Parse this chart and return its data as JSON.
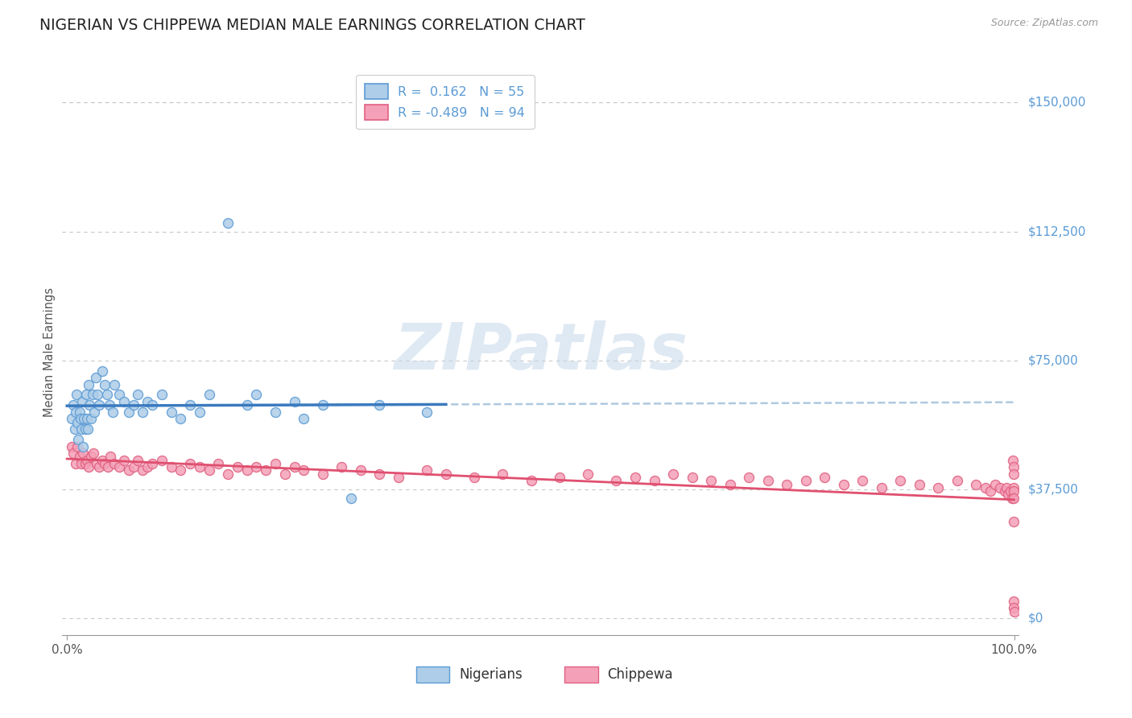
{
  "title": "NIGERIAN VS CHIPPEWA MEDIAN MALE EARNINGS CORRELATION CHART",
  "source_text": "Source: ZipAtlas.com",
  "ylabel": "Median Male Earnings",
  "watermark": "ZIPatlas",
  "bg_color": "#ffffff",
  "plot_bg_color": "#ffffff",
  "grid_color": "#c8c8c8",
  "title_color": "#222222",
  "title_fontsize": 13.5,
  "right_label_color": "#5b9bd5",
  "ytick_labels": [
    "$0",
    "$37,500",
    "$75,000",
    "$112,500",
    "$150,000"
  ],
  "ytick_values": [
    0,
    37500,
    75000,
    112500,
    150000
  ],
  "ylim": [
    -5000,
    160000
  ],
  "xlim": [
    -0.005,
    1.005
  ],
  "xtick_labels": [
    "0.0%",
    "100.0%"
  ],
  "xtick_values": [
    0.0,
    1.0
  ],
  "nigerians": {
    "R": 0.162,
    "N": 55,
    "color": "#aecde8",
    "border_color": "#5b9bd5",
    "trend_color": "#3a7abf",
    "trend_dashed_color": "#9abcd8",
    "label": "Nigerians",
    "x": [
      0.005,
      0.007,
      0.008,
      0.009,
      0.01,
      0.011,
      0.012,
      0.013,
      0.014,
      0.015,
      0.016,
      0.017,
      0.018,
      0.019,
      0.02,
      0.021,
      0.022,
      0.023,
      0.024,
      0.025,
      0.027,
      0.029,
      0.03,
      0.032,
      0.034,
      0.037,
      0.04,
      0.042,
      0.045,
      0.048,
      0.05,
      0.055,
      0.06,
      0.065,
      0.07,
      0.075,
      0.08,
      0.085,
      0.09,
      0.1,
      0.11,
      0.12,
      0.13,
      0.14,
      0.15,
      0.17,
      0.19,
      0.2,
      0.22,
      0.24,
      0.25,
      0.27,
      0.3,
      0.33,
      0.38
    ],
    "y": [
      58000,
      62000,
      55000,
      60000,
      65000,
      57000,
      52000,
      60000,
      58000,
      55000,
      63000,
      50000,
      58000,
      55000,
      65000,
      58000,
      55000,
      68000,
      62000,
      58000,
      65000,
      60000,
      70000,
      65000,
      62000,
      72000,
      68000,
      65000,
      62000,
      60000,
      68000,
      65000,
      63000,
      60000,
      62000,
      65000,
      60000,
      63000,
      62000,
      65000,
      60000,
      58000,
      62000,
      60000,
      65000,
      115000,
      62000,
      65000,
      60000,
      63000,
      58000,
      62000,
      35000,
      62000,
      60000
    ]
  },
  "chippewa": {
    "R": -0.489,
    "N": 94,
    "color": "#f4a0b8",
    "border_color": "#e06080",
    "trend_color": "#e05070",
    "label": "Chippewa",
    "x": [
      0.005,
      0.007,
      0.009,
      0.011,
      0.013,
      0.015,
      0.017,
      0.019,
      0.021,
      0.023,
      0.025,
      0.028,
      0.031,
      0.034,
      0.037,
      0.04,
      0.043,
      0.046,
      0.05,
      0.055,
      0.06,
      0.065,
      0.07,
      0.075,
      0.08,
      0.085,
      0.09,
      0.1,
      0.11,
      0.12,
      0.13,
      0.14,
      0.15,
      0.16,
      0.17,
      0.18,
      0.19,
      0.2,
      0.21,
      0.22,
      0.23,
      0.24,
      0.25,
      0.27,
      0.29,
      0.31,
      0.33,
      0.35,
      0.38,
      0.4,
      0.43,
      0.46,
      0.49,
      0.52,
      0.55,
      0.58,
      0.6,
      0.62,
      0.64,
      0.66,
      0.68,
      0.7,
      0.72,
      0.74,
      0.76,
      0.78,
      0.8,
      0.82,
      0.84,
      0.86,
      0.88,
      0.9,
      0.92,
      0.94,
      0.96,
      0.97,
      0.975,
      0.98,
      0.985,
      0.99,
      0.992,
      0.994,
      0.996,
      0.998,
      0.999,
      0.9992,
      0.9994,
      0.9996,
      0.9998,
      0.9999,
      0.99992,
      0.99994,
      0.99996,
      1.0
    ],
    "y": [
      50000,
      48000,
      45000,
      50000,
      47000,
      45000,
      48000,
      45000,
      46000,
      44000,
      47000,
      48000,
      45000,
      44000,
      46000,
      45000,
      44000,
      47000,
      45000,
      44000,
      46000,
      43000,
      44000,
      46000,
      43000,
      44000,
      45000,
      46000,
      44000,
      43000,
      45000,
      44000,
      43000,
      45000,
      42000,
      44000,
      43000,
      44000,
      43000,
      45000,
      42000,
      44000,
      43000,
      42000,
      44000,
      43000,
      42000,
      41000,
      43000,
      42000,
      41000,
      42000,
      40000,
      41000,
      42000,
      40000,
      41000,
      40000,
      42000,
      41000,
      40000,
      39000,
      41000,
      40000,
      39000,
      40000,
      41000,
      39000,
      40000,
      38000,
      40000,
      39000,
      38000,
      40000,
      39000,
      38000,
      37000,
      39000,
      38000,
      37000,
      38000,
      36000,
      37000,
      35000,
      46000,
      44000,
      42000,
      38000,
      37000,
      35000,
      28000,
      5000,
      3000,
      2000
    ]
  }
}
